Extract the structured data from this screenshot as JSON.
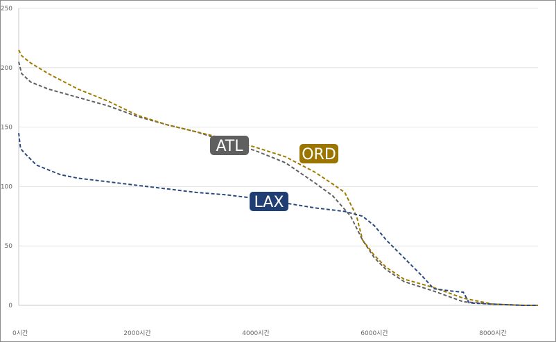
{
  "chart_data": {
    "type": "line",
    "title": "",
    "xlabel": "",
    "ylabel": "",
    "xlim": [
      0,
      8760
    ],
    "ylim": [
      0,
      250
    ],
    "y_ticks": [
      0,
      50,
      100,
      150,
      200,
      250
    ],
    "x_ticks": [
      {
        "value": 0,
        "label": "0시간"
      },
      {
        "value": 2000,
        "label": "2000시간"
      },
      {
        "value": 4000,
        "label": "4000시간"
      },
      {
        "value": 6000,
        "label": "6000시간"
      },
      {
        "value": 8000,
        "label": "8000시간"
      }
    ],
    "grid": true,
    "legend": "none",
    "series": [
      {
        "name": "ATL",
        "color": "#5f5f5f",
        "x": [
          0,
          50,
          200,
          500,
          1000,
          1500,
          2000,
          2500,
          3000,
          3500,
          4000,
          4500,
          5000,
          5300,
          5600,
          5800,
          6000,
          6200,
          6500,
          7000,
          7500,
          8000,
          8500,
          8760
        ],
        "y": [
          205,
          195,
          188,
          182,
          175,
          168,
          159,
          152,
          146,
          138,
          130,
          120,
          103,
          92,
          75,
          55,
          40,
          30,
          20,
          12,
          3,
          1,
          0,
          0
        ]
      },
      {
        "name": "ORD",
        "color": "#a07a00",
        "x": [
          0,
          50,
          200,
          500,
          1000,
          1500,
          2000,
          2500,
          3000,
          3500,
          4000,
          4500,
          5000,
          5300,
          5500,
          5700,
          5800,
          6000,
          6200,
          6500,
          7000,
          7500,
          8000,
          8500,
          8760
        ],
        "y": [
          215,
          210,
          204,
          195,
          182,
          172,
          160,
          152,
          146,
          140,
          133,
          125,
          112,
          102,
          95,
          75,
          55,
          42,
          32,
          22,
          15,
          6,
          1,
          0,
          0
        ]
      },
      {
        "name": "LAX",
        "color": "#2a4a7f",
        "x": [
          0,
          30,
          100,
          300,
          700,
          1000,
          1500,
          2000,
          2500,
          3000,
          3500,
          4000,
          4500,
          5000,
          5500,
          5800,
          6000,
          6200,
          6500,
          6800,
          7000,
          7300,
          7500,
          7600,
          8000,
          8500,
          8760
        ],
        "y": [
          145,
          132,
          128,
          118,
          110,
          107,
          104,
          101,
          98,
          95,
          93,
          90,
          86,
          82,
          79,
          75,
          67,
          55,
          40,
          25,
          14,
          12,
          11,
          2,
          1,
          0,
          0
        ]
      }
    ],
    "series_labels": [
      {
        "series": "ATL",
        "text": "ATL",
        "color": "#5f5f5f"
      },
      {
        "series": "ORD",
        "text": "ORD",
        "color": "#9c7400"
      },
      {
        "series": "LAX",
        "text": "LAX",
        "color": "#1f3e73"
      }
    ]
  }
}
